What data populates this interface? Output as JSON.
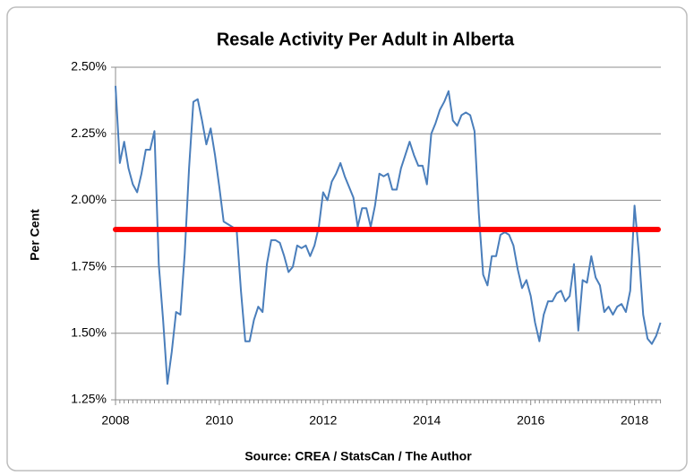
{
  "chart_data": {
    "type": "line",
    "title": "Resale Activity Per Adult in Alberta",
    "y_label": "Per Cent",
    "source": "Source:  CREA  / StatsCan  / The Author",
    "categories": [
      "2008",
      null,
      null,
      null,
      null,
      null,
      null,
      null,
      null,
      null,
      null,
      null,
      null,
      null,
      null,
      null,
      null,
      null,
      null,
      null,
      null,
      null,
      null,
      null,
      "2010",
      null,
      null,
      null,
      null,
      null,
      null,
      null,
      null,
      null,
      null,
      null,
      null,
      null,
      null,
      null,
      null,
      null,
      null,
      null,
      null,
      null,
      null,
      null,
      "2012",
      null,
      null,
      null,
      null,
      null,
      null,
      null,
      null,
      null,
      null,
      null,
      null,
      null,
      null,
      null,
      null,
      null,
      null,
      null,
      null,
      null,
      null,
      null,
      "2014",
      null,
      null,
      null,
      null,
      null,
      null,
      null,
      null,
      null,
      null,
      null,
      null,
      null,
      null,
      null,
      null,
      null,
      null,
      null,
      null,
      null,
      null,
      null,
      "2016",
      null,
      null,
      null,
      null,
      null,
      null,
      null,
      null,
      null,
      null,
      null,
      null,
      null,
      null,
      null,
      null,
      null,
      null,
      null,
      null,
      null,
      null,
      null,
      "2018",
      null,
      null,
      null,
      null,
      null,
      null
    ],
    "series": [
      {
        "color": "#4a7ebb",
        "values": [
          2.43,
          2.14,
          2.22,
          2.12,
          2.06,
          2.03,
          2.1,
          2.19,
          2.19,
          2.26,
          1.76,
          1.55,
          1.31,
          1.43,
          1.58,
          1.57,
          1.8,
          2.12,
          2.37,
          2.38,
          2.3,
          2.21,
          2.27,
          2.17,
          2.05,
          1.92,
          1.91,
          1.9,
          1.89,
          1.66,
          1.47,
          1.47,
          1.55,
          1.6,
          1.58,
          1.76,
          1.85,
          1.85,
          1.84,
          1.79,
          1.73,
          1.75,
          1.83,
          1.82,
          1.83,
          1.79,
          1.83,
          1.9,
          2.03,
          2.0,
          2.07,
          2.1,
          2.14,
          2.09,
          2.05,
          2.01,
          1.9,
          1.97,
          1.97,
          1.9,
          1.98,
          2.1,
          2.09,
          2.1,
          2.04,
          2.04,
          2.12,
          2.17,
          2.22,
          2.17,
          2.13,
          2.13,
          2.06,
          2.25,
          2.29,
          2.34,
          2.37,
          2.41,
          2.3,
          2.28,
          2.32,
          2.33,
          2.32,
          2.26,
          1.95,
          1.72,
          1.68,
          1.79,
          1.79,
          1.87,
          1.88,
          1.87,
          1.83,
          1.74,
          1.67,
          1.7,
          1.64,
          1.54,
          1.47,
          1.57,
          1.62,
          1.62,
          1.65,
          1.66,
          1.62,
          1.64,
          1.76,
          1.51,
          1.7,
          1.69,
          1.79,
          1.71,
          1.68,
          1.58,
          1.6,
          1.57,
          1.6,
          1.61,
          1.58,
          1.66,
          1.98,
          1.8,
          1.57,
          1.48,
          1.46,
          1.49,
          1.54
        ]
      }
    ],
    "hline": {
      "value": 1.89,
      "color": "#ff0000"
    },
    "ylim": [
      1.25,
      2.5
    ],
    "yticks": [
      {
        "value": 1.25,
        "label": "1.25%"
      },
      {
        "value": 1.5,
        "label": "1.50%"
      },
      {
        "value": 1.75,
        "label": "1.75%"
      },
      {
        "value": 2.0,
        "label": "2.00%"
      },
      {
        "value": 2.25,
        "label": "2.25%"
      },
      {
        "value": 2.5,
        "label": "2.50%"
      }
    ],
    "grid": true
  }
}
